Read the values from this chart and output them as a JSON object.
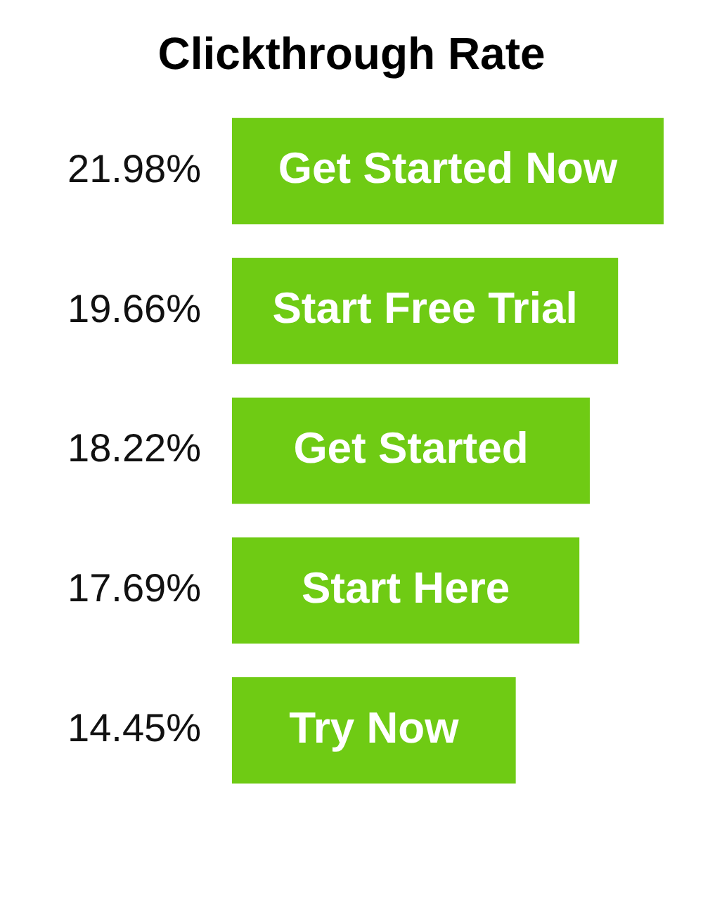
{
  "chart_data": {
    "type": "bar",
    "title": "Clickthrough Rate",
    "orientation": "horizontal",
    "categories": [
      "Get Started Now",
      "Start Free Trial",
      "Get Started",
      "Start Here",
      "Try Now"
    ],
    "values": [
      21.98,
      19.66,
      18.22,
      17.69,
      14.45
    ],
    "value_labels": [
      "21.98%",
      "19.66%",
      "18.22%",
      "17.69%",
      "14.45%"
    ],
    "color": "#6fcb14"
  }
}
